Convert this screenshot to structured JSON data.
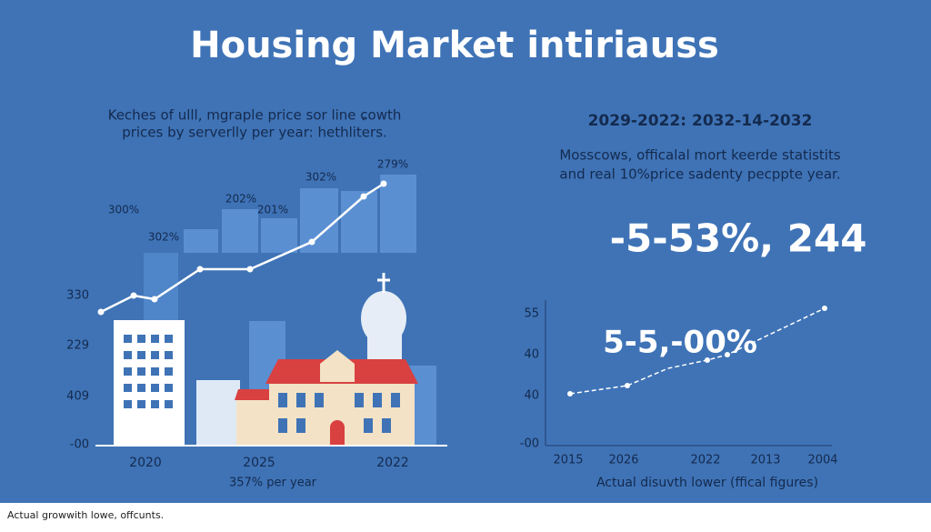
{
  "header": {
    "title": "Housing Market intiriauss"
  },
  "left_panel": {
    "subtitle": [
      "Keches of ulll, mgraple price sor line ɕowth",
      "prices by serverlly per year: hethliters."
    ],
    "point_labels": [
      "300%",
      "302%",
      "202%",
      "201%",
      "302%",
      "279%"
    ],
    "y_labels": [
      "330",
      "229",
      "409",
      "-00"
    ],
    "x_labels": [
      "2020",
      "2025",
      "2022"
    ],
    "caption": "357% per year"
  },
  "right_panel": {
    "heading": "2029-2022: 2032-14-2032",
    "subtitle": [
      "Mosscows, officalal mort keerde statistits",
      "and real 10%price sadenty pecppte year."
    ],
    "big_number": "-5-53%, 244",
    "overlay": "5-5,-00%",
    "y_labels": [
      "55",
      "40",
      "40",
      "-00"
    ],
    "x_labels": [
      "2015",
      "2026",
      "2022",
      "2013",
      "2004"
    ],
    "caption": "Actual disuvth lower (ffical figures)"
  },
  "footer": "Actual growwith lowe, offcunts."
}
